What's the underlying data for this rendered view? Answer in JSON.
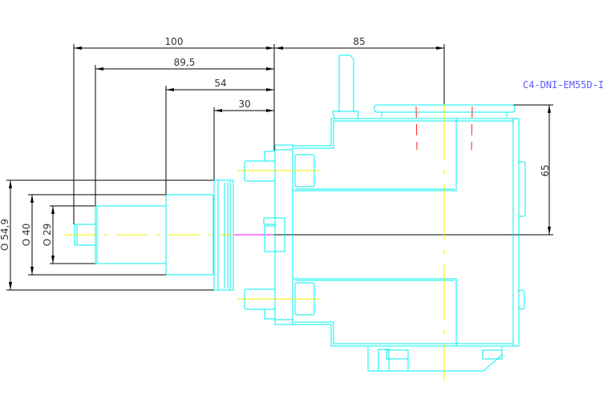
{
  "drawing": {
    "title_label": "C4-DNI-EM55D-I",
    "dimensions": {
      "length_100": "100",
      "length_89_5": "89,5",
      "length_54": "54",
      "length_30": "30",
      "length_85": "85",
      "height_65": "65",
      "diameter_54_9": "O 54,9",
      "diameter_40": "O 40",
      "diameter_29": "O 29"
    },
    "colors": {
      "outline": "#00f0f0",
      "centerline": "#f0f000",
      "hidden_line": "#ff2020",
      "dimension": "#000000",
      "label": "#5a5aff"
    }
  }
}
